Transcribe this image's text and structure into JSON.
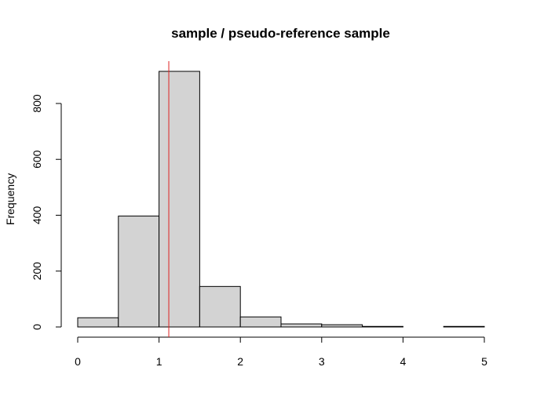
{
  "chart_data": {
    "type": "bar",
    "subtype": "histogram",
    "title": "sample / pseudo-reference sample",
    "xlabel": "",
    "ylabel": "Frequency",
    "bins": [
      {
        "start": 0.0,
        "end": 0.5,
        "count": 33
      },
      {
        "start": 0.5,
        "end": 1.0,
        "count": 397
      },
      {
        "start": 1.0,
        "end": 1.5,
        "count": 915
      },
      {
        "start": 1.5,
        "end": 2.0,
        "count": 145
      },
      {
        "start": 2.0,
        "end": 2.5,
        "count": 36
      },
      {
        "start": 2.5,
        "end": 3.0,
        "count": 11
      },
      {
        "start": 3.0,
        "end": 3.5,
        "count": 8
      },
      {
        "start": 3.5,
        "end": 4.0,
        "count": 2
      },
      {
        "start": 4.0,
        "end": 4.5,
        "count": 0
      },
      {
        "start": 4.5,
        "end": 5.0,
        "count": 2
      }
    ],
    "xlim": [
      0,
      5
    ],
    "ylim": [
      0,
      915
    ],
    "x_ticks": [
      0,
      1,
      2,
      3,
      4,
      5
    ],
    "y_ticks": [
      0,
      200,
      400,
      600,
      800
    ],
    "reference_line": {
      "x": 1.12,
      "color": "#dd2222"
    },
    "bar_fill": "#d3d3d3",
    "bar_stroke": "#000000",
    "grid": false,
    "legend": "none"
  }
}
